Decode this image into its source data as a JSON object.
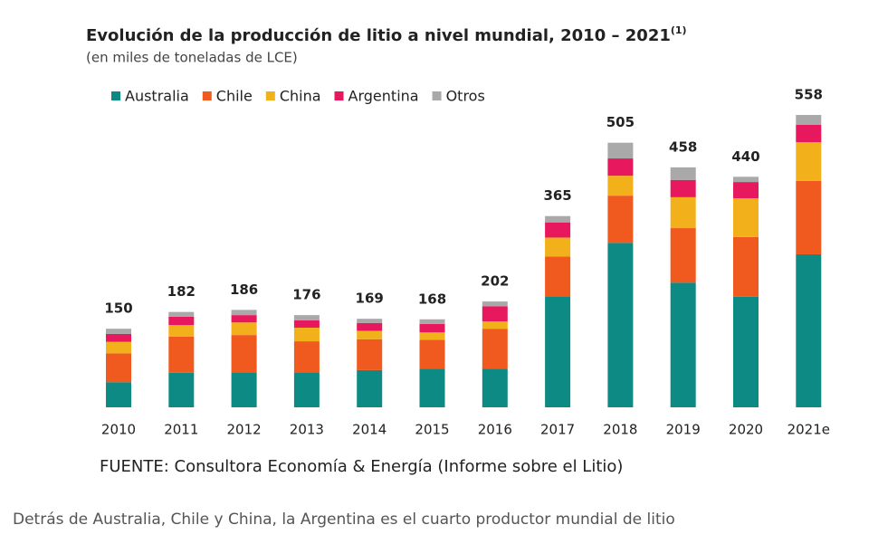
{
  "chart_data": {
    "type": "stacked_bar",
    "title": "Evolución de la producción de litio a nivel mundial, 2010 – 2021",
    "title_note": "(1)",
    "subtitle": "(en miles de toneladas de LCE)",
    "categories": [
      "2010",
      "2011",
      "2012",
      "2013",
      "2014",
      "2015",
      "2016",
      "2017",
      "2018",
      "2019",
      "2020",
      "2021e"
    ],
    "series": [
      {
        "name": "Australia",
        "color": "#0e8a85",
        "values": [
          48,
          66,
          67,
          67,
          71,
          74,
          74,
          212,
          314,
          238,
          211,
          292
        ]
      },
      {
        "name": "Chile",
        "color": "#f05a1e",
        "values": [
          55,
          69,
          71,
          59,
          59,
          55,
          76,
          76,
          90,
          104,
          114,
          140
        ]
      },
      {
        "name": "China",
        "color": "#f2b11a",
        "values": [
          22,
          22,
          24,
          26,
          16,
          14,
          14,
          36,
          38,
          59,
          74,
          74
        ]
      },
      {
        "name": "Argentina",
        "color": "#e8185e",
        "values": [
          15,
          16,
          14,
          14,
          15,
          16,
          29,
          29,
          33,
          33,
          31,
          33
        ]
      },
      {
        "name": "Otros",
        "color": "#a9a9a9",
        "values": [
          10,
          9,
          10,
          10,
          8,
          9,
          9,
          12,
          30,
          24,
          10,
          19
        ]
      }
    ],
    "totals": [
      150,
      182,
      186,
      176,
      169,
      168,
      202,
      365,
      505,
      458,
      440,
      558
    ],
    "source": "FUENTE: Consultora Economía & Energía (Informe sobre el Litio)"
  },
  "caption": "Detrás de Australia, Chile y China, la Argentina es el cuarto productor mundial de litio"
}
